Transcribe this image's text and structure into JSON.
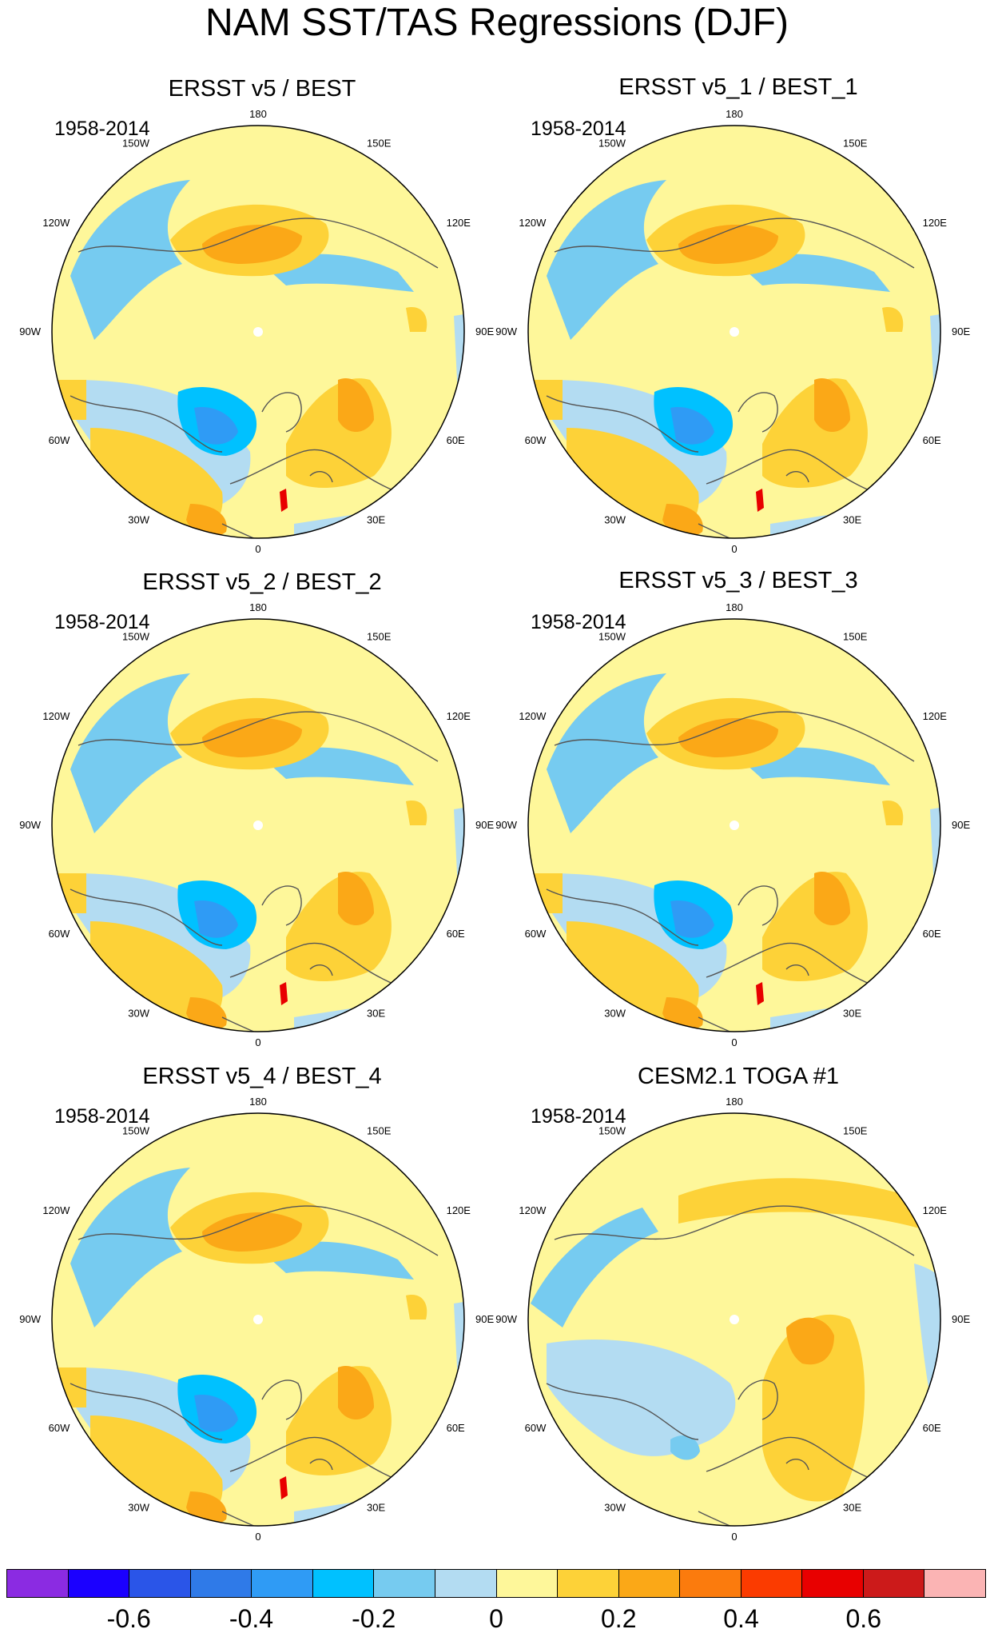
{
  "figure_title": "NAM SST/TAS Regressions (DJF)",
  "panels": [
    {
      "title": "ERSST v5 / BEST",
      "period": "1958-2014",
      "pattern": "obs"
    },
    {
      "title": "ERSST v5_1 / BEST_1",
      "period": "1958-2014",
      "pattern": "obs"
    },
    {
      "title": "ERSST v5_2 / BEST_2",
      "period": "1958-2014",
      "pattern": "obs"
    },
    {
      "title": "ERSST v5_3 / BEST_3",
      "period": "1958-2014",
      "pattern": "obs"
    },
    {
      "title": "ERSST v5_4 / BEST_4",
      "period": "1958-2014",
      "pattern": "obs"
    },
    {
      "title": "CESM2.1 TOGA #1",
      "period": "1958-2014",
      "pattern": "model"
    }
  ],
  "longitude_labels": [
    "180",
    "150E",
    "120E",
    "90E",
    "60E",
    "30E",
    "0",
    "30W",
    "60W",
    "90W",
    "120W",
    "150W"
  ],
  "colorbar": {
    "colors": [
      "#8b2be2",
      "#1b00ff",
      "#2a55e8",
      "#2f7ae8",
      "#2f9bf5",
      "#00c1ff",
      "#76cbf0",
      "#b3dcf2",
      "#fef79a",
      "#fdd238",
      "#fba817",
      "#fb7b0d",
      "#fb3b00",
      "#e80000",
      "#cc1a1a",
      "#fbb4b4"
    ],
    "ticks": [
      "-0.6",
      "-0.4",
      "-0.2",
      "0",
      "0.2",
      "0.4",
      "0.6"
    ]
  }
}
